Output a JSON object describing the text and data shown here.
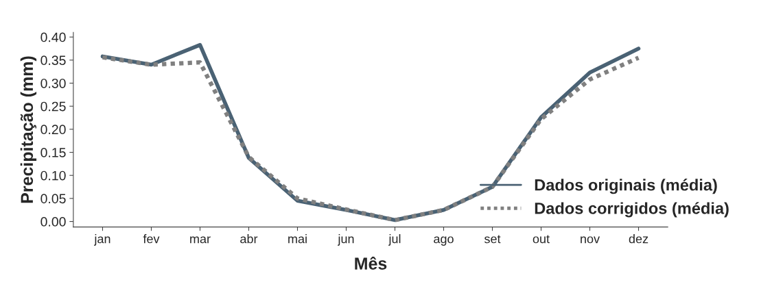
{
  "chart_data": {
    "type": "line",
    "xlabel": "Mês",
    "ylabel": "Precipitação (mm)",
    "categories": [
      "jan",
      "fev",
      "mar",
      "abr",
      "mai",
      "jun",
      "jul",
      "ago",
      "set",
      "out",
      "nov",
      "dez"
    ],
    "series": [
      {
        "name": "Dados originais (média)",
        "color": "#4a6274",
        "line_style": "solid",
        "values": [
          0.358,
          0.34,
          0.383,
          0.138,
          0.045,
          0.025,
          0.003,
          0.025,
          0.075,
          0.226,
          0.323,
          0.375
        ]
      },
      {
        "name": "Dados corrigidos (média)",
        "color": "#808080",
        "line_style": "dotted",
        "values": [
          0.356,
          0.34,
          0.345,
          0.14,
          0.05,
          0.026,
          0.003,
          0.025,
          0.075,
          0.222,
          0.308,
          0.355
        ]
      }
    ],
    "ylim": [
      -0.012,
      0.41
    ],
    "yticks": [
      {
        "value": 0.0,
        "label": "0.00"
      },
      {
        "value": 0.05,
        "label": "0.05"
      },
      {
        "value": 0.1,
        "label": "0.10"
      },
      {
        "value": 0.15,
        "label": "0.15"
      },
      {
        "value": 0.2,
        "label": "0.20"
      },
      {
        "value": 0.25,
        "label": "0.25"
      },
      {
        "value": 0.3,
        "label": "0.30"
      },
      {
        "value": 0.35,
        "label": "0.35"
      },
      {
        "value": 0.4,
        "label": "0.40"
      }
    ],
    "grid": false,
    "legend": "bottom right",
    "marker": "none"
  }
}
